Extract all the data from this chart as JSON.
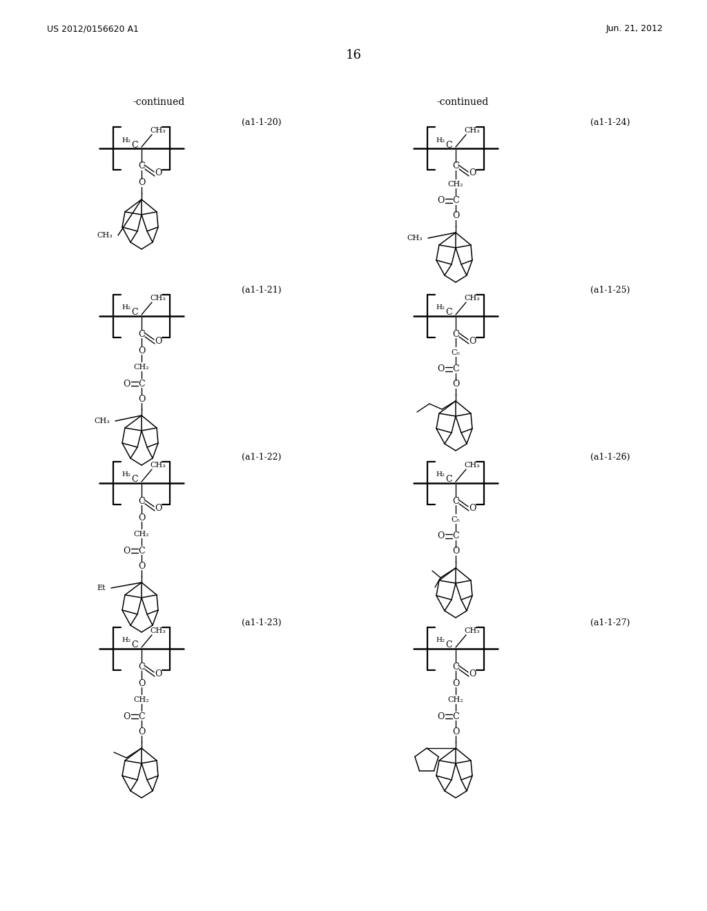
{
  "page_number": "16",
  "patent_number": "US 2012/0156620 A1",
  "patent_date": "Jun. 21, 2012",
  "background_color": "#ffffff",
  "text_color": "#000000",
  "continued_left": "-continued",
  "continued_right": "-continued",
  "labels": [
    "(a1-1-20)",
    "(a1-1-21)",
    "(a1-1-22)",
    "(a1-1-23)",
    "(a1-1-24)",
    "(a1-1-25)",
    "(a1-1-26)",
    "(a1-1-27)"
  ],
  "figsize": [
    10.24,
    13.2
  ],
  "dpi": 100
}
